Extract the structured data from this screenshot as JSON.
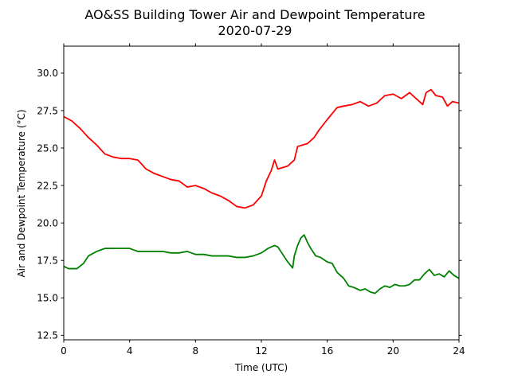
{
  "chart_data": {
    "type": "line",
    "title": "AO&SS Building Tower Air and Dewpoint Temperature",
    "subtitle": "2020-07-29",
    "xlabel": "Time (UTC)",
    "ylabel": "Air and Dewpoint Temperature (°C)",
    "xlim": [
      0,
      24
    ],
    "ylim": [
      12.2,
      31.8
    ],
    "xticks": [
      0,
      4,
      8,
      12,
      16,
      20,
      24
    ],
    "xtick_labels": [
      "0",
      "4",
      "8",
      "12",
      "16",
      "20",
      "24"
    ],
    "yticks": [
      12.5,
      15.0,
      17.5,
      20.0,
      22.5,
      25.0,
      27.5,
      30.0
    ],
    "ytick_labels": [
      "12.5",
      "15.0",
      "17.5",
      "20.0",
      "22.5",
      "25.0",
      "27.5",
      "30.0"
    ],
    "grid": false,
    "series": [
      {
        "color": "#ff0000",
        "x": [
          0,
          0.5,
          1,
          1.5,
          2,
          2.5,
          3,
          3.5,
          4,
          4.5,
          5,
          5.5,
          6,
          6.5,
          7,
          7.5,
          8,
          8.5,
          9,
          9.5,
          10,
          10.5,
          11,
          11.5,
          12,
          12.3,
          12.6,
          12.8,
          13,
          13.3,
          13.6,
          14,
          14.2,
          14.5,
          14.8,
          15.2,
          15.5,
          16,
          16.3,
          16.6,
          17,
          17.5,
          18,
          18.5,
          19,
          19.5,
          20,
          20.5,
          21,
          21.5,
          21.8,
          22,
          22.3,
          22.6,
          23,
          23.3,
          23.6,
          24
        ],
        "y": [
          27.1,
          26.8,
          26.3,
          25.7,
          25.2,
          24.6,
          24.4,
          24.3,
          24.3,
          24.2,
          23.6,
          23.3,
          23.1,
          22.9,
          22.8,
          22.4,
          22.5,
          22.3,
          22.0,
          21.8,
          21.5,
          21.1,
          21.0,
          21.2,
          21.8,
          22.8,
          23.5,
          24.2,
          23.6,
          23.7,
          23.8,
          24.2,
          25.1,
          25.2,
          25.3,
          25.7,
          26.2,
          26.9,
          27.3,
          27.7,
          27.8,
          27.9,
          28.1,
          27.8,
          28.0,
          28.5,
          28.6,
          28.3,
          28.7,
          28.2,
          27.9,
          28.7,
          28.9,
          28.5,
          28.4,
          27.8,
          28.1,
          28.0
        ]
      },
      {
        "color": "#008000",
        "x": [
          0,
          0.3,
          0.8,
          1.2,
          1.5,
          2,
          2.5,
          3,
          3.5,
          4,
          4.5,
          5,
          5.5,
          6,
          6.5,
          7,
          7.5,
          8,
          8.5,
          9,
          9.5,
          10,
          10.5,
          11,
          11.5,
          12,
          12.4,
          12.8,
          13,
          13.3,
          13.6,
          13.9,
          14,
          14.2,
          14.4,
          14.6,
          14.8,
          15,
          15.3,
          15.6,
          16,
          16.3,
          16.6,
          17,
          17.3,
          17.6,
          18,
          18.3,
          18.6,
          18.9,
          19.2,
          19.5,
          19.8,
          20.1,
          20.4,
          20.7,
          21,
          21.3,
          21.6,
          21.9,
          22.2,
          22.5,
          22.8,
          23.1,
          23.4,
          23.7,
          24
        ],
        "y": [
          17.1,
          16.95,
          16.95,
          17.3,
          17.8,
          18.1,
          18.3,
          18.3,
          18.3,
          18.3,
          18.1,
          18.1,
          18.1,
          18.1,
          18.0,
          18.0,
          18.1,
          17.9,
          17.9,
          17.8,
          17.8,
          17.8,
          17.7,
          17.7,
          17.8,
          18.0,
          18.3,
          18.5,
          18.4,
          17.9,
          17.4,
          17.0,
          17.8,
          18.5,
          19.0,
          19.2,
          18.7,
          18.3,
          17.8,
          17.7,
          17.4,
          17.3,
          16.7,
          16.3,
          15.8,
          15.7,
          15.5,
          15.6,
          15.4,
          15.3,
          15.6,
          15.8,
          15.7,
          15.9,
          15.8,
          15.8,
          15.9,
          16.2,
          16.2,
          16.6,
          16.9,
          16.5,
          16.6,
          16.4,
          16.8,
          16.5,
          16.3
        ]
      }
    ]
  }
}
